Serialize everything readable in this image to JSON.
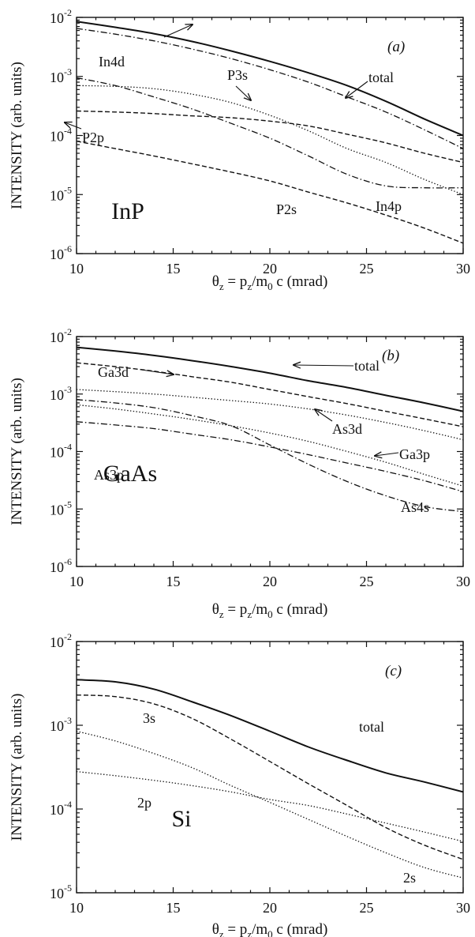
{
  "chart_data": [
    {
      "panel": "(a)",
      "type": "line",
      "material": "InP",
      "ylabel": "INTENSITY (arb. units)",
      "xlabel": "θz = pz/m0c (mrad)",
      "xlim": [
        10,
        30
      ],
      "ylim_log10": [
        -6,
        -2
      ],
      "log_y": true,
      "xticks": [
        "10",
        "15",
        "20",
        "25",
        "30"
      ],
      "yticks": [
        {
          "base": "10",
          "exp": "-6"
        },
        {
          "base": "10",
          "exp": "-5"
        },
        {
          "base": "10",
          "exp": "-4"
        },
        {
          "base": "10",
          "exp": "-3"
        },
        {
          "base": "10",
          "exp": "-2"
        }
      ],
      "series": [
        {
          "name": "total",
          "style": "solid",
          "x": [
            10,
            12,
            14,
            16,
            18,
            20,
            22,
            24,
            26,
            28,
            30
          ],
          "y": [
            0.0085,
            0.0068,
            0.0053,
            0.0039,
            0.0027,
            0.0018,
            0.00115,
            0.0007,
            0.00038,
            0.00019,
            0.0001
          ]
        },
        {
          "name": "In4d",
          "style": "dashdot",
          "x": [
            10,
            12,
            14,
            16,
            18,
            20,
            22,
            24,
            26,
            28,
            30
          ],
          "y": [
            0.0065,
            0.0052,
            0.004,
            0.0029,
            0.002,
            0.0013,
            0.0008,
            0.00045,
            0.00025,
            0.000125,
            6e-05
          ]
        },
        {
          "name": "P3s",
          "style": "dotted",
          "x": [
            10,
            12,
            14,
            16,
            18,
            20,
            22,
            24,
            26,
            28,
            30
          ],
          "y": [
            0.0007,
            0.00068,
            0.00062,
            0.0005,
            0.00036,
            0.00022,
            0.00012,
            6e-05,
            3.5e-05,
            1.8e-05,
            1e-05
          ]
        },
        {
          "name": "P2p",
          "style": "dashed",
          "x": [
            10,
            12,
            14,
            16,
            18,
            20,
            22,
            24,
            26,
            28,
            30
          ],
          "y": [
            0.00026,
            0.00025,
            0.000235,
            0.000215,
            0.0002,
            0.000175,
            0.000145,
            0.000105,
            7.5e-05,
            5e-05,
            3.5e-05
          ]
        },
        {
          "name": "In4p",
          "style": "dashdot",
          "x": [
            10,
            12,
            14,
            16,
            18,
            20,
            22,
            24,
            26,
            28,
            30
          ],
          "y": [
            0.00095,
            0.0007,
            0.00045,
            0.00028,
            0.00016,
            9e-05,
            4.5e-05,
            2.2e-05,
            1.4e-05,
            1.3e-05,
            1.3e-05
          ]
        },
        {
          "name": "P2s",
          "style": "dashed",
          "x": [
            10,
            12,
            14,
            16,
            18,
            20,
            22,
            24,
            26,
            28,
            30
          ],
          "y": [
            8e-05,
            6e-05,
            4.5e-05,
            3.3e-05,
            2.4e-05,
            1.7e-05,
            1.1e-05,
            7.2e-06,
            4.5e-06,
            2.7e-06,
            1.5e-06
          ]
        }
      ],
      "labels": [
        {
          "text": "In4d",
          "series": "In4d"
        },
        {
          "text": "P3s",
          "series": "P3s"
        },
        {
          "text": "total",
          "series": "total"
        },
        {
          "text": "P2p",
          "series": "P2p"
        },
        {
          "text": "In4p",
          "series": "In4p"
        },
        {
          "text": "P2s",
          "series": "P2s"
        }
      ]
    },
    {
      "panel": "(b)",
      "type": "line",
      "material": "GaAs",
      "ylabel": "INTENSITY (arb. units)",
      "xlabel": "θz = pz/m0c (mrad)",
      "xlim": [
        10,
        30
      ],
      "ylim_log10": [
        -6,
        -2
      ],
      "log_y": true,
      "xticks": [
        "10",
        "15",
        "20",
        "25",
        "30"
      ],
      "yticks": [
        {
          "base": "10",
          "exp": "-6"
        },
        {
          "base": "10",
          "exp": "-5"
        },
        {
          "base": "10",
          "exp": "-4"
        },
        {
          "base": "10",
          "exp": "-3"
        },
        {
          "base": "10",
          "exp": "-2"
        }
      ],
      "series": [
        {
          "name": "total",
          "style": "solid",
          "x": [
            10,
            12,
            14,
            16,
            18,
            20,
            22,
            24,
            26,
            28,
            30
          ],
          "y": [
            0.0065,
            0.0056,
            0.0047,
            0.0038,
            0.003,
            0.0023,
            0.0017,
            0.0013,
            0.00095,
            0.0007,
            0.0005
          ]
        },
        {
          "name": "Ga3d",
          "style": "dashed",
          "x": [
            10,
            12,
            14,
            16,
            18,
            20,
            22,
            24,
            26,
            28,
            30
          ],
          "y": [
            0.0035,
            0.003,
            0.0025,
            0.002,
            0.0016,
            0.0012,
            0.0009,
            0.00068,
            0.0005,
            0.00037,
            0.00027
          ]
        },
        {
          "name": "As3d",
          "style": "dotted",
          "x": [
            10,
            12,
            14,
            16,
            18,
            20,
            22,
            24,
            26,
            28,
            30
          ],
          "y": [
            0.0012,
            0.0011,
            0.001,
            0.00088,
            0.00077,
            0.00067,
            0.00055,
            0.00043,
            0.00032,
            0.00023,
            0.00016
          ]
        },
        {
          "name": "Ga3p",
          "style": "dotted",
          "x": [
            10,
            12,
            14,
            16,
            18,
            20,
            22,
            24,
            26,
            28,
            30
          ],
          "y": [
            0.00065,
            0.00055,
            0.00045,
            0.00036,
            0.00028,
            0.00021,
            0.00015,
            0.0001,
            6.5e-05,
            4e-05,
            2.5e-05
          ]
        },
        {
          "name": "As4s",
          "style": "dashdot",
          "x": [
            10,
            12,
            14,
            16,
            18,
            20,
            22,
            24,
            26,
            28,
            30
          ],
          "y": [
            0.0008,
            0.0007,
            0.00058,
            0.00042,
            0.00028,
            0.00013,
            6e-05,
            3e-05,
            1.7e-05,
            1.1e-05,
            9e-06
          ]
        },
        {
          "name": "As3p",
          "style": "dashdot",
          "x": [
            10,
            12,
            14,
            16,
            18,
            20,
            22,
            24,
            26,
            28,
            30
          ],
          "y": [
            0.00033,
            0.00029,
            0.00025,
            0.0002,
            0.00016,
            0.00012,
            8.8e-05,
            6.3e-05,
            4.5e-05,
            3.1e-05,
            2e-05
          ]
        }
      ],
      "labels": [
        {
          "text": "total",
          "series": "total"
        },
        {
          "text": "Ga3d",
          "series": "Ga3d"
        },
        {
          "text": "As3d",
          "series": "As3d"
        },
        {
          "text": "Ga3p",
          "series": "Ga3p"
        },
        {
          "text": "As3p",
          "series": "As3p"
        },
        {
          "text": "As4s",
          "series": "As4s"
        }
      ]
    },
    {
      "panel": "(c)",
      "type": "line",
      "material": "Si",
      "ylabel": "INTENSITY (arb. units)",
      "xlabel": "θz = pz/m0c (mrad)",
      "xlim": [
        10,
        30
      ],
      "ylim_log10": [
        -5,
        -2
      ],
      "log_y": true,
      "xticks": [
        "10",
        "15",
        "20",
        "25",
        "30"
      ],
      "yticks": [
        {
          "base": "10",
          "exp": "-5"
        },
        {
          "base": "10",
          "exp": "-4"
        },
        {
          "base": "10",
          "exp": "-3"
        },
        {
          "base": "10",
          "exp": "-2"
        }
      ],
      "series": [
        {
          "name": "total",
          "style": "solid",
          "x": [
            10,
            12,
            14,
            16,
            18,
            20,
            22,
            24,
            26,
            28,
            30
          ],
          "y": [
            0.0035,
            0.0033,
            0.0027,
            0.0019,
            0.0013,
            0.00085,
            0.00055,
            0.00038,
            0.00027,
            0.00021,
            0.00016
          ]
        },
        {
          "name": "3s",
          "style": "dashed",
          "x": [
            10,
            12,
            14,
            16,
            18,
            20,
            22,
            24,
            26,
            28,
            30
          ],
          "y": [
            0.0023,
            0.0022,
            0.0018,
            0.0012,
            0.00068,
            0.00037,
            0.0002,
            0.00011,
            6e-05,
            3.7e-05,
            2.5e-05
          ]
        },
        {
          "name": "2s",
          "style": "dotted",
          "x": [
            10,
            12,
            14,
            16,
            18,
            20,
            22,
            24,
            26,
            28,
            30
          ],
          "y": [
            0.00085,
            0.00065,
            0.00046,
            0.00031,
            0.00019,
            0.00012,
            7.5e-05,
            4.7e-05,
            3e-05,
            2e-05,
            1.5e-05
          ]
        },
        {
          "name": "2p",
          "style": "dotted",
          "x": [
            10,
            12,
            14,
            16,
            18,
            20,
            22,
            24,
            26,
            28,
            30
          ],
          "y": [
            0.00028,
            0.00025,
            0.00022,
            0.00019,
            0.00016,
            0.00013,
            0.00011,
            8.7e-05,
            6.8e-05,
            5.3e-05,
            4.1e-05
          ]
        }
      ],
      "labels": [
        {
          "text": "total",
          "series": "total"
        },
        {
          "text": "3s",
          "series": "3s"
        },
        {
          "text": "2p",
          "series": "2p"
        },
        {
          "text": "2s",
          "series": "2s"
        }
      ]
    }
  ],
  "axis_title": {
    "prefix": "θ",
    "sub1": "z",
    "middle": " = p",
    "sub2": "z",
    "slash": "/m",
    "sub3": "0",
    "suffix": "c (mrad)"
  }
}
